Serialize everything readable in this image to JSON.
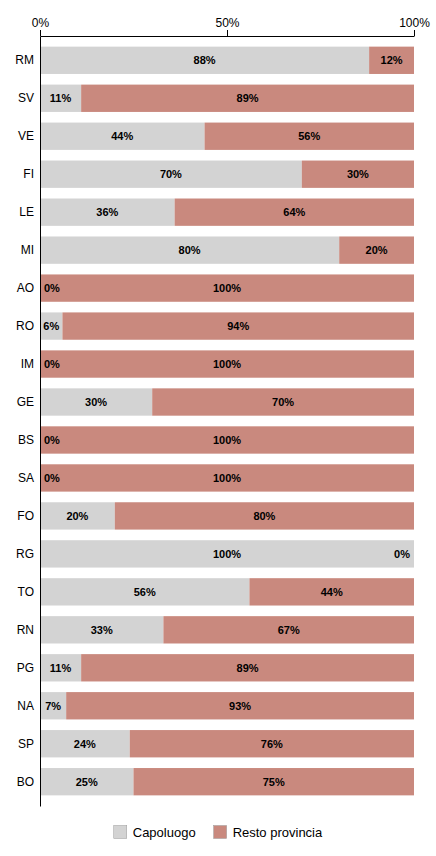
{
  "chart_data": {
    "type": "bar",
    "orientation": "horizontal",
    "stacked": true,
    "data_labels": true,
    "grid": false,
    "legend": "bottom",
    "categories": [
      "RM",
      "SV",
      "VE",
      "FI",
      "LE",
      "MI",
      "AO",
      "RO",
      "IM",
      "GE",
      "BS",
      "SA",
      "FO",
      "RG",
      "TO",
      "RN",
      "PG",
      "NA",
      "SP",
      "BO"
    ],
    "series": [
      {
        "name": "Capoluogo",
        "color": "#d3d3d3",
        "values": [
          88,
          11,
          44,
          70,
          36,
          80,
          0,
          6,
          0,
          30,
          0,
          0,
          20,
          100,
          56,
          33,
          11,
          7,
          24,
          25
        ],
        "value_labels": [
          "88%",
          "11%",
          "44%",
          "70%",
          "36%",
          "80%",
          "0%",
          "6%",
          "0%",
          "30%",
          "0%",
          "0%",
          "20%",
          "100%",
          "56%",
          "33%",
          "11%",
          "7%",
          "24%",
          "25%"
        ]
      },
      {
        "name": "Resto provincia",
        "color": "#c9897e",
        "values": [
          12,
          89,
          56,
          30,
          64,
          20,
          100,
          94,
          100,
          70,
          100,
          100,
          80,
          0,
          44,
          67,
          89,
          93,
          76,
          75
        ],
        "value_labels": [
          "12%",
          "89%",
          "56%",
          "30%",
          "64%",
          "20%",
          "100%",
          "94%",
          "100%",
          "70%",
          "100%",
          "100%",
          "80%",
          "0%",
          "44%",
          "67%",
          "89%",
          "93%",
          "76%",
          "75%"
        ]
      }
    ],
    "xlim": [
      0,
      100
    ],
    "xticks": [
      {
        "value": 0,
        "label": "0%"
      },
      {
        "value": 50,
        "label": "50%"
      },
      {
        "value": 100,
        "label": "100%"
      }
    ]
  }
}
